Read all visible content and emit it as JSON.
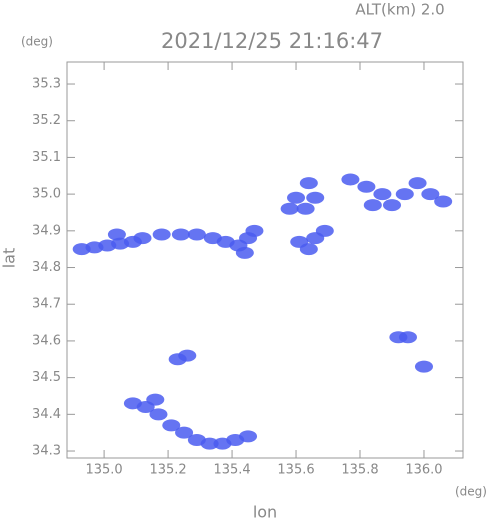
{
  "chart_data": {
    "type": "scatter",
    "title": "2021/12/25 21:16:47",
    "subtitle": "ALT(km) 2.0",
    "y_unit": "(deg)",
    "x_unit": "(deg)",
    "x_label": "lon",
    "y_label": "lat",
    "xlim": [
      134.884,
      136.122
    ],
    "ylim": [
      34.281,
      35.36
    ],
    "xticks": [
      {
        "value": 135,
        "label": "135.0"
      },
      135.2,
      135.4,
      135.6,
      135.8,
      {
        "value": 136,
        "label": "136.0"
      }
    ],
    "yticks": [
      34.3,
      34.4,
      34.5,
      34.6,
      34.7,
      34.8,
      34.9,
      {
        "value": 35,
        "label": "35.0"
      },
      35.1,
      35.2,
      35.3
    ],
    "series": [
      {
        "color": "#4a5cf0",
        "x": [
          134.93,
          134.97,
          135.01,
          135.05,
          135.09,
          135.12,
          135.04,
          135.18,
          135.24,
          135.29,
          135.34,
          135.38,
          135.42,
          135.45,
          135.47,
          135.44,
          135.58,
          135.63,
          135.6,
          135.66,
          135.64,
          135.61,
          135.66,
          135.69,
          135.64,
          135.77,
          135.82,
          135.87,
          135.9,
          135.94,
          135.98,
          136.02,
          136.06,
          135.84,
          135.92,
          135.95,
          136.0,
          135.23,
          135.26,
          135.09,
          135.13,
          135.17,
          135.21,
          135.25,
          135.29,
          135.33,
          135.37,
          135.41,
          135.45,
          135.16
        ],
        "values": [
          34.85,
          34.855,
          34.86,
          34.865,
          34.87,
          34.88,
          34.89,
          34.89,
          34.89,
          34.89,
          34.88,
          34.87,
          34.86,
          34.88,
          34.9,
          34.84,
          34.96,
          34.96,
          34.99,
          34.99,
          35.03,
          34.87,
          34.88,
          34.9,
          34.85,
          35.04,
          35.02,
          35.0,
          34.97,
          35.0,
          35.03,
          35.0,
          34.98,
          34.97,
          34.61,
          34.61,
          34.53,
          34.55,
          34.56,
          34.43,
          34.42,
          34.4,
          34.37,
          34.35,
          34.33,
          34.32,
          34.32,
          34.33,
          34.34,
          34.44
        ]
      }
    ]
  }
}
